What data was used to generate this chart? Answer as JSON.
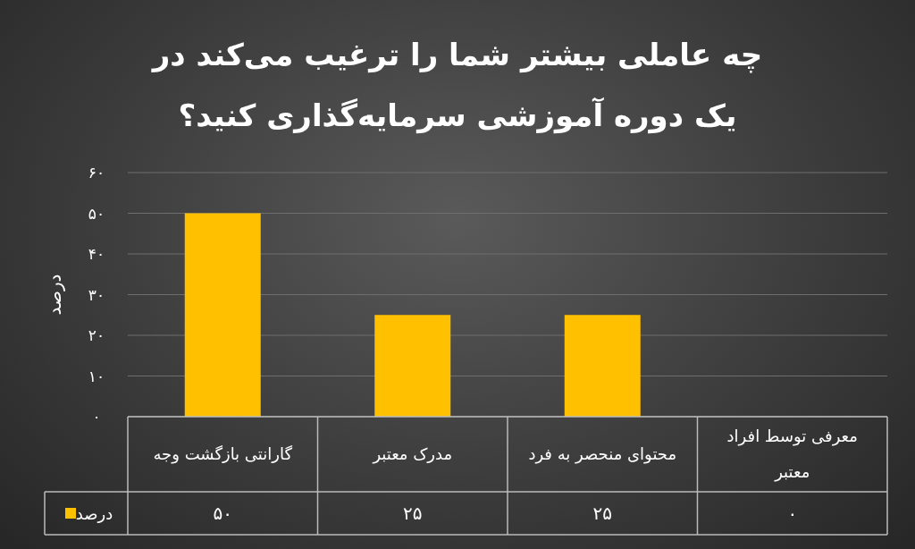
{
  "chart_data": {
    "type": "bar",
    "title": "چه عاملی بیشتر شما را ترغیب می‌کند در یک دوره آموزشی سرمایه‌گذاری کنید؟",
    "ylabel": "درصد",
    "categories": [
      "گارانتی بازگشت وجه",
      "مدرک معتبر",
      "محتوای منحصر به فرد",
      "معرفی توسط افراد معتبر"
    ],
    "series": [
      {
        "name": "درصد",
        "color": "#ffc000",
        "values": [
          50,
          25,
          25,
          0
        ],
        "value_labels": [
          "۵۰",
          "۲۵",
          "۲۵",
          "۰"
        ]
      }
    ],
    "ylim": [
      0,
      60
    ],
    "yticks": [
      {
        "value": 0,
        "label": "۰"
      },
      {
        "value": 10,
        "label": "۱۰"
      },
      {
        "value": 20,
        "label": "۲۰"
      },
      {
        "value": 30,
        "label": "۳۰"
      },
      {
        "value": 40,
        "label": "۴۰"
      },
      {
        "value": 50,
        "label": "۵۰"
      },
      {
        "value": 60,
        "label": "۶۰"
      }
    ],
    "grid": "y",
    "legend": "bottom left"
  }
}
